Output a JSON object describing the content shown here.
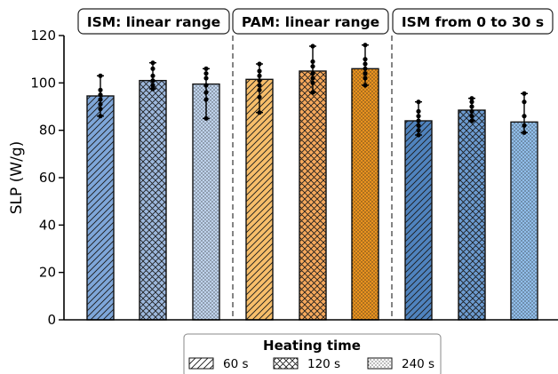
{
  "chart_data": {
    "type": "bar",
    "ylabel": "SLP (W/g)",
    "ylim": [
      0,
      120
    ],
    "yticks": [
      0,
      20,
      40,
      60,
      80,
      100,
      120
    ],
    "groups": [
      {
        "label": "ISM: linear range",
        "bars": [
          {
            "heating_time": "60 s",
            "value": 94.5,
            "points": [
              103,
              97,
              95,
              93,
              91,
              89,
              86
            ],
            "color": "#7EA6D9",
            "pattern": "diag"
          },
          {
            "heating_time": "120 s",
            "value": 101,
            "points": [
              108.5,
              106,
              103,
              101,
              99,
              97.5
            ],
            "color": "#9DB8DD",
            "pattern": "cross"
          },
          {
            "heating_time": "240 s",
            "value": 99.5,
            "points": [
              106,
              104,
              102,
              99,
              96,
              93,
              85
            ],
            "color": "#BFD3EC",
            "pattern": "dot"
          }
        ]
      },
      {
        "label": "PAM: linear range",
        "bars": [
          {
            "heating_time": "60 s",
            "value": 101.5,
            "points": [
              108,
              105,
              103,
              101,
              99,
              97,
              94,
              87.5
            ],
            "color": "#F7BE6A",
            "pattern": "diag"
          },
          {
            "heating_time": "120 s",
            "value": 105,
            "points": [
              115.5,
              109,
              107,
              104,
              102,
              100,
              96
            ],
            "color": "#F5A85C",
            "pattern": "cross"
          },
          {
            "heating_time": "240 s",
            "value": 106,
            "points": [
              116,
              110,
              108,
              106,
              104,
              102,
              99
            ],
            "color": "#E8921F",
            "pattern": "dot"
          }
        ]
      },
      {
        "label": "ISM from 0 to 30 s",
        "bars": [
          {
            "heating_time": "60 s",
            "value": 84,
            "points": [
              92,
              88,
              86,
              84,
              82,
              80,
              78
            ],
            "color": "#4F83BE",
            "pattern": "diag"
          },
          {
            "heating_time": "120 s",
            "value": 88.5,
            "points": [
              93.5,
              92,
              90,
              88,
              86,
              84
            ],
            "color": "#6C9BD0",
            "pattern": "cross"
          },
          {
            "heating_time": "240 s",
            "value": 83.5,
            "points": [
              95.5,
              92,
              86,
              82,
              79
            ],
            "color": "#91BEEA",
            "pattern": "dot"
          }
        ]
      }
    ],
    "legend": {
      "title": "Heating time",
      "position": "bottom-center",
      "items": [
        {
          "label": "60 s",
          "pattern": "diag"
        },
        {
          "label": "120 s",
          "pattern": "cross"
        },
        {
          "label": "240 s",
          "pattern": "dot"
        }
      ]
    }
  }
}
